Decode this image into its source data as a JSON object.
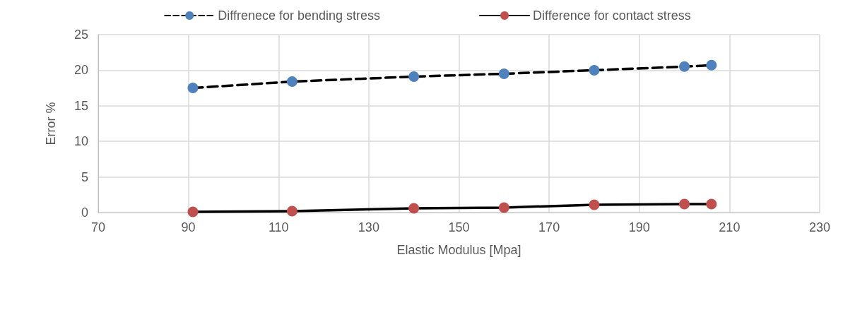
{
  "chart_data": {
    "type": "line",
    "xlabel": "Elastic Modulus [Mpa]",
    "ylabel": "Error %",
    "x": [
      91,
      113,
      140,
      160,
      180,
      200,
      206
    ],
    "series": [
      {
        "name": "Diffrenece for bending stress",
        "color": "#4f81bd",
        "line_style": "dashed",
        "values": [
          17.5,
          18.4,
          19.1,
          19.5,
          20.0,
          20.5,
          20.7
        ]
      },
      {
        "name": "Difference for contact stress",
        "color": "#c0504d",
        "line_style": "solid",
        "values": [
          0.1,
          0.2,
          0.6,
          0.7,
          1.1,
          1.2,
          1.2
        ]
      }
    ],
    "xlim": [
      70,
      230
    ],
    "xticks": [
      70,
      90,
      110,
      130,
      150,
      170,
      190,
      210,
      230
    ],
    "ylim": [
      0,
      25
    ],
    "yticks": [
      0,
      5,
      10,
      15,
      20,
      25
    ],
    "grid": true,
    "legend": "top",
    "marker": "circle"
  }
}
